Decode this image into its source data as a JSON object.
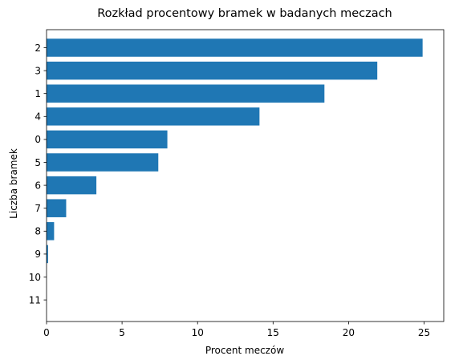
{
  "chart_data": {
    "type": "bar",
    "orientation": "horizontal",
    "title": "Rozkład procentowy bramek w badanych meczach",
    "xlabel": "Procent meczów",
    "ylabel": "Liczba bramek",
    "categories": [
      "2",
      "3",
      "1",
      "4",
      "0",
      "5",
      "6",
      "7",
      "8",
      "9",
      "10",
      "11"
    ],
    "values": [
      24.9,
      21.9,
      18.4,
      14.1,
      8.0,
      7.4,
      3.3,
      1.3,
      0.5,
      0.1,
      0.0,
      0.0
    ],
    "xlim": [
      0,
      26.3
    ],
    "xticks": [
      0,
      5,
      10,
      15,
      20,
      25
    ],
    "grid": false,
    "colors": {
      "bar": "#1f77b4"
    }
  }
}
